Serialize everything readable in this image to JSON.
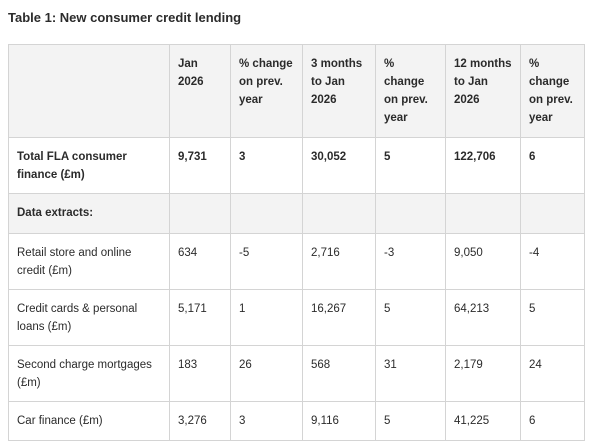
{
  "caption": "Table 1: New consumer credit lending",
  "headers": [
    "",
    "Jan 2026",
    "% change on prev. year",
    "3 months to Jan 2026",
    "% change on prev. year",
    "12 months to Jan 2026",
    "% change on prev. year"
  ],
  "total_row": {
    "label": "Total FLA consumer finance (£m)",
    "cells": [
      "9,731",
      "3",
      "30,052",
      "5",
      "122,706",
      "6"
    ]
  },
  "section_label": "Data extracts:",
  "rows": [
    {
      "label": "Retail store and online credit (£m)",
      "cells": [
        "634",
        "-5",
        "2,716",
        "-3",
        "9,050",
        "-4"
      ]
    },
    {
      "label": "Credit cards & personal loans (£m)",
      "cells": [
        "5,171",
        "1",
        "16,267",
        "5",
        "64,213",
        "5"
      ]
    },
    {
      "label": "Second charge mortgages (£m)",
      "cells": [
        "183",
        "26",
        "568",
        "31",
        "2,179",
        "24"
      ]
    },
    {
      "label": "Car finance (£m)",
      "cells": [
        "3,276",
        "3",
        "9,116",
        "5",
        "41,225",
        "6"
      ]
    }
  ]
}
